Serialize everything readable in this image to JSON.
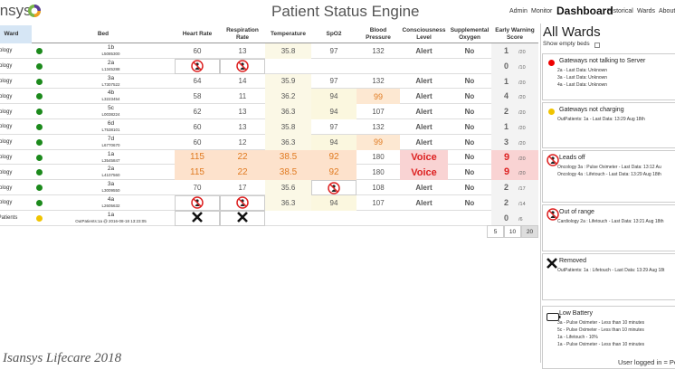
{
  "header": {
    "logo": "isansys",
    "title": "Patient Status Engine",
    "nav": [
      "Admin",
      "Monitor",
      "Dashboard",
      "Historical",
      "Wards",
      "About"
    ]
  },
  "table": {
    "columns": [
      "Ward",
      "Bed",
      "Heart Rate",
      "Respiration Rate",
      "Temperature",
      "SpO2",
      "Blood Pressure",
      "Consciousness Level",
      "Supplemental Oxygen",
      "Early Warning Score"
    ],
    "rows": [
      {
        "ward": "Oncology",
        "status_color": "#1c8a1c",
        "bed": "1b",
        "id": "L5085300",
        "cells": [
          "60",
          "13",
          "35.8",
          "97",
          "132",
          "Alert",
          "No"
        ],
        "ews": "1",
        "max": "/20"
      },
      {
        "ward": "Oncology",
        "status_color": "#1c8a1c",
        "bed": "2a",
        "id": "L1345288",
        "cells": [
          null,
          null,
          null,
          null,
          null,
          null,
          null
        ],
        "ews": "0",
        "max": "/10"
      },
      {
        "ward": "Oncology",
        "status_color": "#1c8a1c",
        "bed": "3a",
        "id": "L7307522",
        "cells": [
          "64",
          "14",
          "35.9",
          "97",
          "132",
          "Alert",
          "No"
        ],
        "ews": "1",
        "max": "/20"
      },
      {
        "ward": "Oncology",
        "status_color": "#1c8a1c",
        "bed": "4b",
        "id": "L3223454",
        "cells": [
          "58",
          "11",
          "36.2",
          "94",
          "99",
          "Alert",
          "No"
        ],
        "ews": "4",
        "max": "/20"
      },
      {
        "ward": "Oncology",
        "status_color": "#1c8a1c",
        "bed": "5c",
        "id": "L0038224",
        "cells": [
          "62",
          "13",
          "36.3",
          "94",
          "107",
          "Alert",
          "No"
        ],
        "ews": "2",
        "max": "/20"
      },
      {
        "ward": "Oncology",
        "status_color": "#1c8a1c",
        "bed": "6d",
        "id": "L7538101",
        "cells": [
          "60",
          "13",
          "35.8",
          "97",
          "132",
          "Alert",
          "No"
        ],
        "ews": "1",
        "max": "/20"
      },
      {
        "ward": "Oncology",
        "status_color": "#1c8a1c",
        "bed": "7d",
        "id": "L6770670",
        "cells": [
          "60",
          "12",
          "36.3",
          "94",
          "99",
          "Alert",
          "No"
        ],
        "ews": "3",
        "max": "/20"
      },
      {
        "ward": "Oncology",
        "status_color": "#1c8a1c",
        "bed": "1a",
        "id": "L3545847",
        "cells": [
          "115",
          "22",
          "38.5",
          "92",
          "180",
          "Voice",
          "No"
        ],
        "ews": "9",
        "max": "/20"
      },
      {
        "ward": "Oncology",
        "status_color": "#1c8a1c",
        "bed": "2a",
        "id": "L4107560",
        "cells": [
          "115",
          "22",
          "38.5",
          "92",
          "180",
          "Voice",
          "No"
        ],
        "ews": "9",
        "max": "/20"
      },
      {
        "ward": "Oncology",
        "status_color": "#1c8a1c",
        "bed": "3a",
        "id": "L3009550",
        "cells": [
          "70",
          "17",
          "35.6",
          null,
          "108",
          "Alert",
          "No"
        ],
        "ews": "2",
        "max": "/17"
      },
      {
        "ward": "Oncology",
        "status_color": "#1c8a1c",
        "bed": "4a",
        "id": "L2605632",
        "cells": [
          null,
          null,
          "36.3",
          "94",
          "107",
          "Alert",
          "No"
        ],
        "ews": "2",
        "max": "/14"
      },
      {
        "ward": "OutPatients",
        "status_color": "#f0c400",
        "bed": "1a",
        "id": "OutPatients:1a @ 2016-08-18 13:23:05",
        "cells": [
          null,
          null,
          null,
          null,
          null,
          null,
          null
        ],
        "ews": "0",
        "max": "/6"
      }
    ],
    "page_sizes": [
      "5",
      "10",
      "20"
    ]
  },
  "panel": {
    "title": "All Wards",
    "checkbox": "Show empty beds",
    "cards": [
      {
        "title": "Gateways not talking to Server",
        "items": [
          "2a - Last Data: Unknown",
          "3a - Last Data: Unknown",
          "4a - Last Data: Unknown"
        ]
      },
      {
        "title": "Gateways not charging",
        "items": [
          "OutPatients: 1a - Last Data: 13:29 Aug 18th"
        ]
      },
      {
        "title": "Leads off",
        "items": [
          "Oncology 3a : Pulse Oximeter - Last Data: 13:12 Au",
          "Oncology 4a : Lifetouch - Last Data: 13:29 Aug 18th"
        ]
      },
      {
        "title": "Out of range",
        "items": [
          "Cardiology 2a : Lifetouch - Last Data: 13:21 Aug 18th"
        ]
      },
      {
        "title": "Removed",
        "items": [
          "OutPatients: 1a : Lifetouch - Last Data: 13:29 Aug 18t"
        ]
      },
      {
        "title": "Low Battery",
        "items": [
          "3a - Pulse Oximeter - Less than 10 minutes",
          "5c - Pulse Oximeter - Less than 10 minutes",
          "1a - Lifetouch - 10%",
          "1a - Pulse Oximeter - Less than 10 minutes"
        ]
      }
    ]
  },
  "footer": {
    "brand": "Isansys Lifecare 2018",
    "user": "User logged in = Pe"
  }
}
